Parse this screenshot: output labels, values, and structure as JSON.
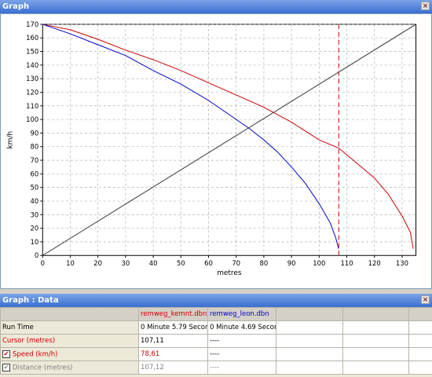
{
  "graph_window": {
    "title": "Graph",
    "close_glyph": "×"
  },
  "data_window": {
    "title": "Graph : Data",
    "close_glyph": "×"
  },
  "chart_data": {
    "type": "line",
    "xlabel": "metres",
    "ylabel": "km/h",
    "xlim": [
      0,
      135
    ],
    "ylim": [
      0,
      170
    ],
    "x_ticks": [
      0,
      10,
      20,
      30,
      40,
      50,
      60,
      70,
      80,
      90,
      100,
      110,
      120,
      130
    ],
    "y_ticks": [
      0,
      10,
      20,
      30,
      40,
      50,
      60,
      70,
      80,
      90,
      100,
      110,
      120,
      130,
      140,
      150,
      160,
      170
    ],
    "grid": true,
    "cursor_x": 107.11,
    "series": [
      {
        "name": "remweg_kemnt.dbn",
        "color": "#cc0000",
        "points": [
          [
            0,
            170
          ],
          [
            10,
            166
          ],
          [
            20,
            159
          ],
          [
            30,
            151
          ],
          [
            40,
            144
          ],
          [
            50,
            136
          ],
          [
            60,
            127
          ],
          [
            70,
            118
          ],
          [
            80,
            109
          ],
          [
            90,
            98
          ],
          [
            100,
            85
          ],
          [
            107,
            79
          ],
          [
            110,
            74
          ],
          [
            120,
            57
          ],
          [
            125,
            45
          ],
          [
            130,
            29
          ],
          [
            133,
            17
          ],
          [
            134,
            5
          ]
        ]
      },
      {
        "name": "remweg_leon.dbn",
        "color": "#0000cc",
        "points": [
          [
            0,
            170
          ],
          [
            10,
            163
          ],
          [
            20,
            155
          ],
          [
            30,
            147
          ],
          [
            40,
            136
          ],
          [
            50,
            126
          ],
          [
            60,
            114
          ],
          [
            70,
            100
          ],
          [
            75,
            93
          ],
          [
            80,
            85
          ],
          [
            85,
            76
          ],
          [
            90,
            65
          ],
          [
            95,
            53
          ],
          [
            100,
            38
          ],
          [
            104,
            24
          ],
          [
            106,
            13
          ],
          [
            107,
            5
          ]
        ]
      },
      {
        "name": "",
        "color": "#333333",
        "points": [
          [
            0,
            0
          ],
          [
            135,
            170
          ]
        ]
      }
    ]
  },
  "table": {
    "columns": [
      "",
      "remweg_kemnt.dbn",
      "remweg_leon.dbn",
      "",
      "",
      ""
    ],
    "rows": [
      {
        "label": "Run Time",
        "values": [
          "0 Minute 5.79 Secon",
          "0 Minute 4.69 Secon",
          "",
          "",
          ""
        ],
        "checkbox": false
      },
      {
        "label": "Cursor (metres)",
        "values": [
          "107,11",
          "----",
          "",
          "",
          ""
        ],
        "checkbox": false
      },
      {
        "label": "Speed (km/h)",
        "values": [
          "78,61",
          "----",
          "",
          "",
          ""
        ],
        "checkbox": true
      },
      {
        "label": "Distance (metres)",
        "values": [
          "107,12",
          "----",
          "",
          "",
          ""
        ],
        "checkbox": true
      }
    ]
  }
}
